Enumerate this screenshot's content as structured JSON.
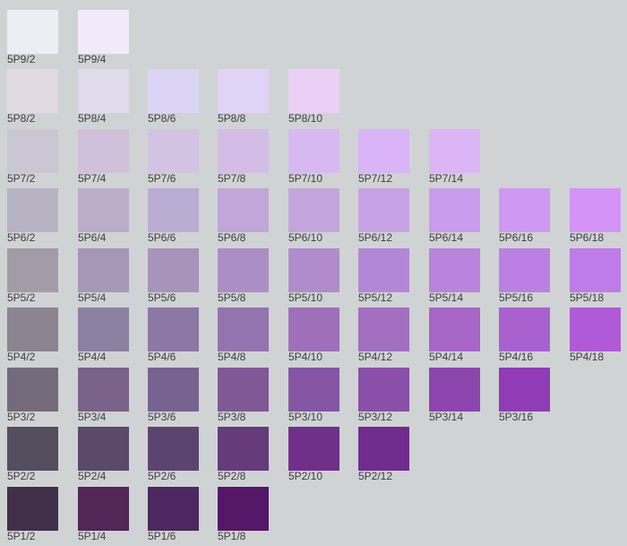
{
  "chart_title": "",
  "rows": [
    {
      "value": "9",
      "chips": [
        {
          "label": "5P9/2",
          "color": "#ededf4"
        },
        {
          "label": "5P9/4",
          "color": "#f2e9fb"
        }
      ]
    },
    {
      "value": "8",
      "chips": [
        {
          "label": "5P8/2",
          "color": "#e1dae5"
        },
        {
          "label": "5P8/4",
          "color": "#dfdbec"
        },
        {
          "label": "5P8/6",
          "color": "#dcd4f4"
        },
        {
          "label": "5P8/8",
          "color": "#e1d3f5"
        },
        {
          "label": "5P8/10",
          "color": "#ebcff5"
        }
      ]
    },
    {
      "value": "7",
      "chips": [
        {
          "label": "5P7/2",
          "color": "#cbc6d3"
        },
        {
          "label": "5P7/4",
          "color": "#cfc1d9"
        },
        {
          "label": "5P7/6",
          "color": "#d1c3e1"
        },
        {
          "label": "5P7/8",
          "color": "#d3bde5"
        },
        {
          "label": "5P7/10",
          "color": "#d7b9f1"
        },
        {
          "label": "5P7/12",
          "color": "#d9b5f7"
        },
        {
          "label": "5P7/14",
          "color": "#dcb5f7"
        }
      ]
    },
    {
      "value": "6",
      "chips": [
        {
          "label": "5P6/2",
          "color": "#b8b3c2"
        },
        {
          "label": "5P6/4",
          "color": "#bbacc9"
        },
        {
          "label": "5P6/6",
          "color": "#bbacd3"
        },
        {
          "label": "5P6/8",
          "color": "#c0a6d9"
        },
        {
          "label": "5P6/10",
          "color": "#c4a5dd"
        },
        {
          "label": "5P6/12",
          "color": "#c7a2e4"
        },
        {
          "label": "5P6/14",
          "color": "#cb9bed"
        },
        {
          "label": "5P6/16",
          "color": "#cf99f3"
        },
        {
          "label": "5P6/18",
          "color": "#d593f7"
        }
      ]
    },
    {
      "value": "5",
      "chips": [
        {
          "label": "5P5/2",
          "color": "#a39ba8"
        },
        {
          "label": "5P5/4",
          "color": "#a797b7"
        },
        {
          "label": "5P5/6",
          "color": "#a793bb"
        },
        {
          "label": "5P5/8",
          "color": "#ac8ec7"
        },
        {
          "label": "5P5/10",
          "color": "#b18ccd"
        },
        {
          "label": "5P5/12",
          "color": "#b387d8"
        },
        {
          "label": "5P5/14",
          "color": "#b984dd"
        },
        {
          "label": "5P5/16",
          "color": "#bc80e4"
        },
        {
          "label": "5P5/18",
          "color": "#c07bea"
        }
      ]
    },
    {
      "value": "4",
      "chips": [
        {
          "label": "5P4/2",
          "color": "#8c8491"
        },
        {
          "label": "5P4/4",
          "color": "#8c80a0"
        },
        {
          "label": "5P4/6",
          "color": "#8d77a4"
        },
        {
          "label": "5P4/8",
          "color": "#9474ae"
        },
        {
          "label": "5P4/10",
          "color": "#9e70ba"
        },
        {
          "label": "5P4/12",
          "color": "#a16ec0"
        },
        {
          "label": "5P4/14",
          "color": "#a765c8"
        },
        {
          "label": "5P4/16",
          "color": "#aa61d0"
        },
        {
          "label": "5P4/18",
          "color": "#b05ad8"
        }
      ]
    },
    {
      "value": "3",
      "chips": [
        {
          "label": "5P3/2",
          "color": "#756a7b"
        },
        {
          "label": "5P3/4",
          "color": "#7a6288"
        },
        {
          "label": "5P3/6",
          "color": "#786290"
        },
        {
          "label": "5P3/8",
          "color": "#805896"
        },
        {
          "label": "5P3/10",
          "color": "#8455a3"
        },
        {
          "label": "5P3/12",
          "color": "#8a4fa8"
        },
        {
          "label": "5P3/14",
          "color": "#8c45ad"
        },
        {
          "label": "5P3/16",
          "color": "#8f3cb6"
        }
      ]
    },
    {
      "value": "2",
      "chips": [
        {
          "label": "5P2/2",
          "color": "#544d5e"
        },
        {
          "label": "5P2/4",
          "color": "#5a4968"
        },
        {
          "label": "5P2/6",
          "color": "#5c4470"
        },
        {
          "label": "5P2/8",
          "color": "#653b7c"
        },
        {
          "label": "5P2/10",
          "color": "#70308a"
        },
        {
          "label": "5P2/12",
          "color": "#712c8f"
        }
      ]
    },
    {
      "value": "1",
      "chips": [
        {
          "label": "5P1/2",
          "color": "#42304a"
        },
        {
          "label": "5P1/4",
          "color": "#522657"
        },
        {
          "label": "5P1/6",
          "color": "#4d2860"
        },
        {
          "label": "5P1/8",
          "color": "#551768"
        }
      ]
    }
  ]
}
